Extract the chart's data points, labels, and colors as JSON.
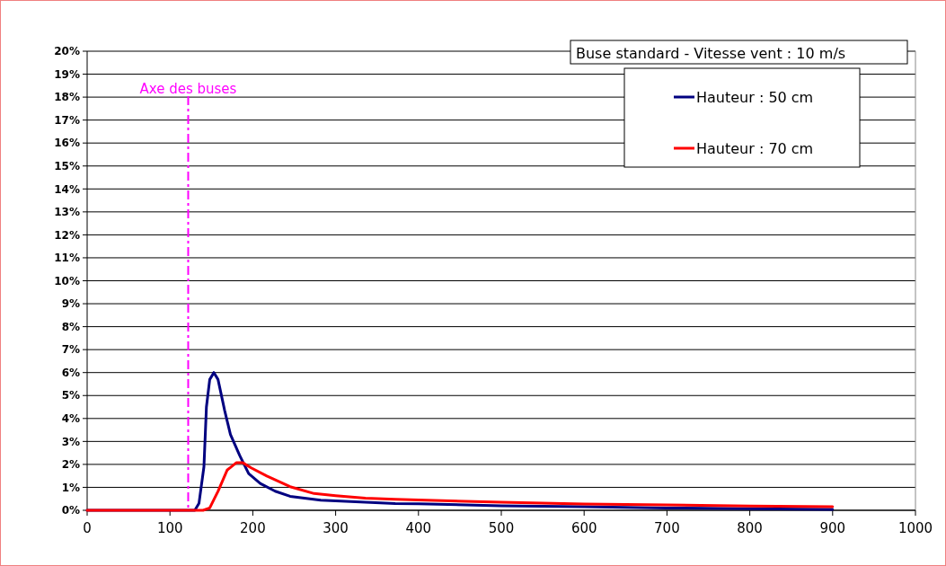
{
  "chart_data": {
    "type": "line",
    "title": "Buse standard - Vitesse vent : 10 m/s",
    "xlim": [
      0,
      1000
    ],
    "xticks": [
      0,
      100,
      200,
      300,
      400,
      500,
      600,
      700,
      800,
      900,
      1000
    ],
    "ylim": [
      0,
      20
    ],
    "yticks": [
      {
        "value": 0,
        "label": "0%"
      },
      {
        "value": 1,
        "label": "1%"
      },
      {
        "value": 2,
        "label": "2%"
      },
      {
        "value": 3,
        "label": "3%"
      },
      {
        "value": 4,
        "label": "4%"
      },
      {
        "value": 5,
        "label": "5%"
      },
      {
        "value": 6,
        "label": "6%"
      },
      {
        "value": 7,
        "label": "7%"
      },
      {
        "value": 8,
        "label": "8%"
      },
      {
        "value": 9,
        "label": "9%"
      },
      {
        "value": 10,
        "label": "10%"
      },
      {
        "value": 11,
        "label": "11%"
      },
      {
        "value": 12,
        "label": "12%"
      },
      {
        "value": 13,
        "label": "13%"
      },
      {
        "value": 14,
        "label": "14%"
      },
      {
        "value": 15,
        "label": "15%"
      },
      {
        "value": 16,
        "label": "16%"
      },
      {
        "value": 17,
        "label": "17%"
      },
      {
        "value": 18,
        "label": "18%"
      },
      {
        "value": 19,
        "label": "19%"
      },
      {
        "value": 20,
        "label": "20%"
      }
    ],
    "grid": "y",
    "legend": "top right",
    "marker": "none",
    "line_style": "solid",
    "series": [
      {
        "name": "Hauteur : 50 cm",
        "color": "#000080",
        "x": [
          0,
          100,
          130,
          135,
          141,
          144,
          148,
          153,
          158,
          166,
          173,
          184,
          195,
          209,
          227,
          245,
          282,
          318,
          372,
          400,
          500,
          600,
          700,
          800,
          900
        ],
        "values": [
          0,
          0,
          0,
          0.3,
          1.9,
          4.5,
          5.7,
          6.0,
          5.7,
          4.35,
          3.3,
          2.4,
          1.6,
          1.17,
          0.83,
          0.61,
          0.44,
          0.38,
          0.29,
          0.28,
          0.2,
          0.16,
          0.1,
          0.07,
          0.04
        ]
      },
      {
        "name": "Hauteur : 70 cm",
        "color": "#ff0000",
        "x": [
          0,
          100,
          140,
          148,
          158,
          169,
          180,
          188,
          198,
          217,
          245,
          274,
          300,
          336,
          372,
          400,
          500,
          600,
          700,
          800,
          900
        ],
        "values": [
          0,
          0,
          0,
          0.1,
          0.83,
          1.75,
          2.07,
          2.07,
          1.85,
          1.49,
          1.03,
          0.73,
          0.64,
          0.53,
          0.48,
          0.45,
          0.35,
          0.27,
          0.23,
          0.19,
          0.16
        ]
      }
    ],
    "ref_lines": [
      {
        "axis": "x",
        "value": 122,
        "label": "Axe des buses",
        "color": "#ff00ff",
        "line_style": "dashed"
      }
    ]
  }
}
